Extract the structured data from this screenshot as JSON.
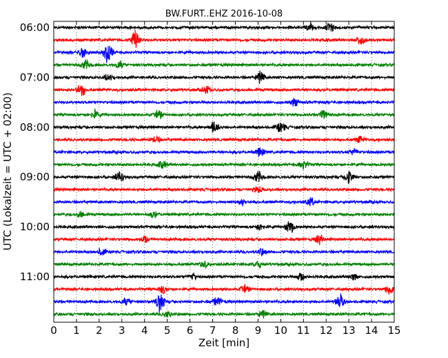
{
  "chart_data": {
    "type": "line",
    "title": "BW.FURT..EHZ 2016-10-08",
    "xlabel": "Zeit  [min]",
    "ylabel": "UTC (Lokalzeit = UTC + 02:00)",
    "xlim": [
      0,
      15
    ],
    "x_ticks": [
      "0",
      "1",
      "2",
      "3",
      "4",
      "5",
      "6",
      "7",
      "8",
      "9",
      "10",
      "11",
      "12",
      "13",
      "14",
      "15"
    ],
    "y_tick_labels": [
      "06:00",
      "07:00",
      "08:00",
      "09:00",
      "10:00",
      "11:00"
    ],
    "grid": true,
    "colors": [
      "#000000",
      "#ff0000",
      "#0000ff",
      "#008000"
    ],
    "traces": [
      {
        "start": "06:00",
        "color": "#000000",
        "events": [
          {
            "t": 11.3,
            "a": 1.6
          },
          {
            "t": 12.2,
            "a": 1.8
          }
        ]
      },
      {
        "start": "06:15",
        "color": "#ff0000",
        "events": [
          {
            "t": 3.6,
            "a": 3.6
          },
          {
            "t": 13.5,
            "a": 1.8
          }
        ]
      },
      {
        "start": "06:30",
        "color": "#0000ff",
        "events": [
          {
            "t": 1.3,
            "a": 2.0
          },
          {
            "t": 2.4,
            "a": 3.8
          }
        ]
      },
      {
        "start": "06:45",
        "color": "#008000",
        "events": [
          {
            "t": 1.4,
            "a": 1.8
          },
          {
            "t": 2.9,
            "a": 1.2
          }
        ]
      },
      {
        "start": "07:00",
        "color": "#000000",
        "events": [
          {
            "t": 9.1,
            "a": 2.0
          },
          {
            "t": 2.4,
            "a": 1.2
          }
        ]
      },
      {
        "start": "07:15",
        "color": "#ff0000",
        "events": [
          {
            "t": 1.2,
            "a": 2.4
          },
          {
            "t": 6.7,
            "a": 1.4
          }
        ]
      },
      {
        "start": "07:30",
        "color": "#0000ff",
        "events": [
          {
            "t": 10.6,
            "a": 1.4
          }
        ]
      },
      {
        "start": "07:45",
        "color": "#008000",
        "events": [
          {
            "t": 1.8,
            "a": 1.6
          },
          {
            "t": 4.6,
            "a": 1.6
          },
          {
            "t": 11.9,
            "a": 1.8
          }
        ]
      },
      {
        "start": "08:00",
        "color": "#000000",
        "events": [
          {
            "t": 7.1,
            "a": 2.6
          },
          {
            "t": 10.0,
            "a": 2.2
          }
        ]
      },
      {
        "start": "08:15",
        "color": "#ff0000",
        "events": [
          {
            "t": 4.5,
            "a": 1.2
          },
          {
            "t": 13.5,
            "a": 1.2
          }
        ]
      },
      {
        "start": "08:30",
        "color": "#0000ff",
        "events": [
          {
            "t": 9.1,
            "a": 1.6
          },
          {
            "t": 13.2,
            "a": 1.2
          }
        ]
      },
      {
        "start": "08:45",
        "color": "#008000",
        "events": [
          {
            "t": 4.8,
            "a": 1.4
          },
          {
            "t": 11.0,
            "a": 1.4
          }
        ]
      },
      {
        "start": "09:00",
        "color": "#000000",
        "events": [
          {
            "t": 2.9,
            "a": 1.8
          },
          {
            "t": 9.0,
            "a": 2.2
          },
          {
            "t": 13.0,
            "a": 2.6
          }
        ]
      },
      {
        "start": "09:15",
        "color": "#ff0000",
        "events": [
          {
            "t": 9.0,
            "a": 1.2
          }
        ]
      },
      {
        "start": "09:30",
        "color": "#0000ff",
        "events": [
          {
            "t": 8.3,
            "a": 1.2
          },
          {
            "t": 11.3,
            "a": 1.4
          }
        ]
      },
      {
        "start": "09:45",
        "color": "#008000",
        "events": [
          {
            "t": 1.2,
            "a": 1.2
          },
          {
            "t": 4.4,
            "a": 1.2
          }
        ]
      },
      {
        "start": "10:00",
        "color": "#000000",
        "events": [
          {
            "t": 10.4,
            "a": 2.6
          },
          {
            "t": 9.1,
            "a": 1.2
          }
        ]
      },
      {
        "start": "10:15",
        "color": "#ff0000",
        "events": [
          {
            "t": 4.0,
            "a": 1.4
          },
          {
            "t": 11.7,
            "a": 1.8
          }
        ]
      },
      {
        "start": "10:30",
        "color": "#0000ff",
        "events": [
          {
            "t": 2.1,
            "a": 1.4
          },
          {
            "t": 9.2,
            "a": 1.2
          }
        ]
      },
      {
        "start": "10:45",
        "color": "#008000",
        "events": [
          {
            "t": 6.6,
            "a": 1.4
          },
          {
            "t": 9.0,
            "a": 1.2
          }
        ]
      },
      {
        "start": "11:00",
        "color": "#000000",
        "events": [
          {
            "t": 6.1,
            "a": 1.2
          },
          {
            "t": 10.9,
            "a": 1.4
          },
          {
            "t": 13.2,
            "a": 1.2
          }
        ]
      },
      {
        "start": "11:15",
        "color": "#ff0000",
        "events": [
          {
            "t": 4.8,
            "a": 1.4
          },
          {
            "t": 8.4,
            "a": 1.6
          },
          {
            "t": 14.8,
            "a": 2.2
          }
        ]
      },
      {
        "start": "11:30",
        "color": "#0000ff",
        "events": [
          {
            "t": 4.7,
            "a": 3.8
          },
          {
            "t": 7.2,
            "a": 1.6
          },
          {
            "t": 12.6,
            "a": 2.8
          },
          {
            "t": 3.2,
            "a": 1.2
          }
        ]
      },
      {
        "start": "11:45",
        "color": "#008000",
        "events": [
          {
            "t": 5.0,
            "a": 1.2
          },
          {
            "t": 9.2,
            "a": 1.2
          }
        ]
      }
    ]
  }
}
